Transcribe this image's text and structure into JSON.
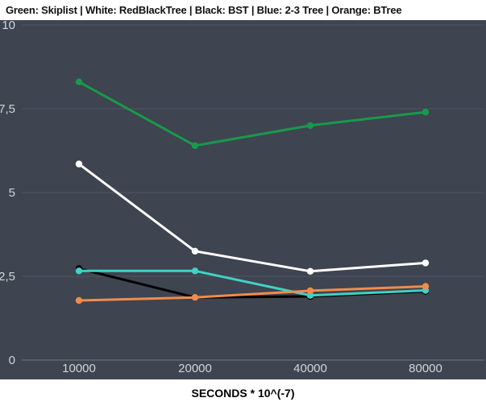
{
  "title": "Green: Skiplist | White: RedBlackTree | Black: BST | Blue: 2-3 Tree | Orange: BTree",
  "colors": {
    "page_background": "#ffffff",
    "chart_background": "#3e4450",
    "gridline": "#50565f",
    "axis_line": "#71777f",
    "tick_label": "#d2d5da",
    "title_text": "#111111"
  },
  "chart_data": {
    "type": "line",
    "title": "Green: Skiplist | White: RedBlackTree | Black: BST | Blue: 2-3 Tree | Orange: BTree",
    "xlabel": "SECONDS * 10^(-7)",
    "ylabel": "",
    "x": [
      10000,
      20000,
      40000,
      80000
    ],
    "x_tick_labels": [
      "10000",
      "20000",
      "40000",
      "80000"
    ],
    "x_scale": "log2-equal-spacing",
    "ylim": [
      0,
      10
    ],
    "yticks": [
      {
        "value": 0,
        "label": "0"
      },
      {
        "value": 2.5,
        "label": "2,5"
      },
      {
        "value": 5,
        "label": "5"
      },
      {
        "value": 7.5,
        "label": "7,5"
      },
      {
        "value": 10,
        "label": "10"
      }
    ],
    "grid": true,
    "legend_position": "in-title",
    "marker": "circle",
    "series": [
      {
        "name": "Skiplist",
        "legend_color": "Green",
        "color": "#189a4a",
        "values": [
          8.3,
          6.4,
          7.0,
          7.4
        ]
      },
      {
        "name": "RedBlackTree",
        "legend_color": "White",
        "color": "#ffffff",
        "values": [
          5.85,
          3.25,
          2.65,
          2.9
        ]
      },
      {
        "name": "BST",
        "legend_color": "Black",
        "color": "#000000",
        "values": [
          2.73,
          1.87,
          1.9,
          2.05
        ]
      },
      {
        "name": "2-3 Tree",
        "legend_color": "Blue",
        "color": "#41d1c6",
        "values": [
          2.66,
          2.66,
          1.93,
          2.08
        ]
      },
      {
        "name": "BTree",
        "legend_color": "Orange",
        "color": "#f08c4c",
        "values": [
          1.78,
          1.87,
          2.07,
          2.2
        ]
      }
    ],
    "draw_order": [
      "BST",
      "Skiplist",
      "RedBlackTree",
      "2-3 Tree",
      "BTree"
    ]
  }
}
